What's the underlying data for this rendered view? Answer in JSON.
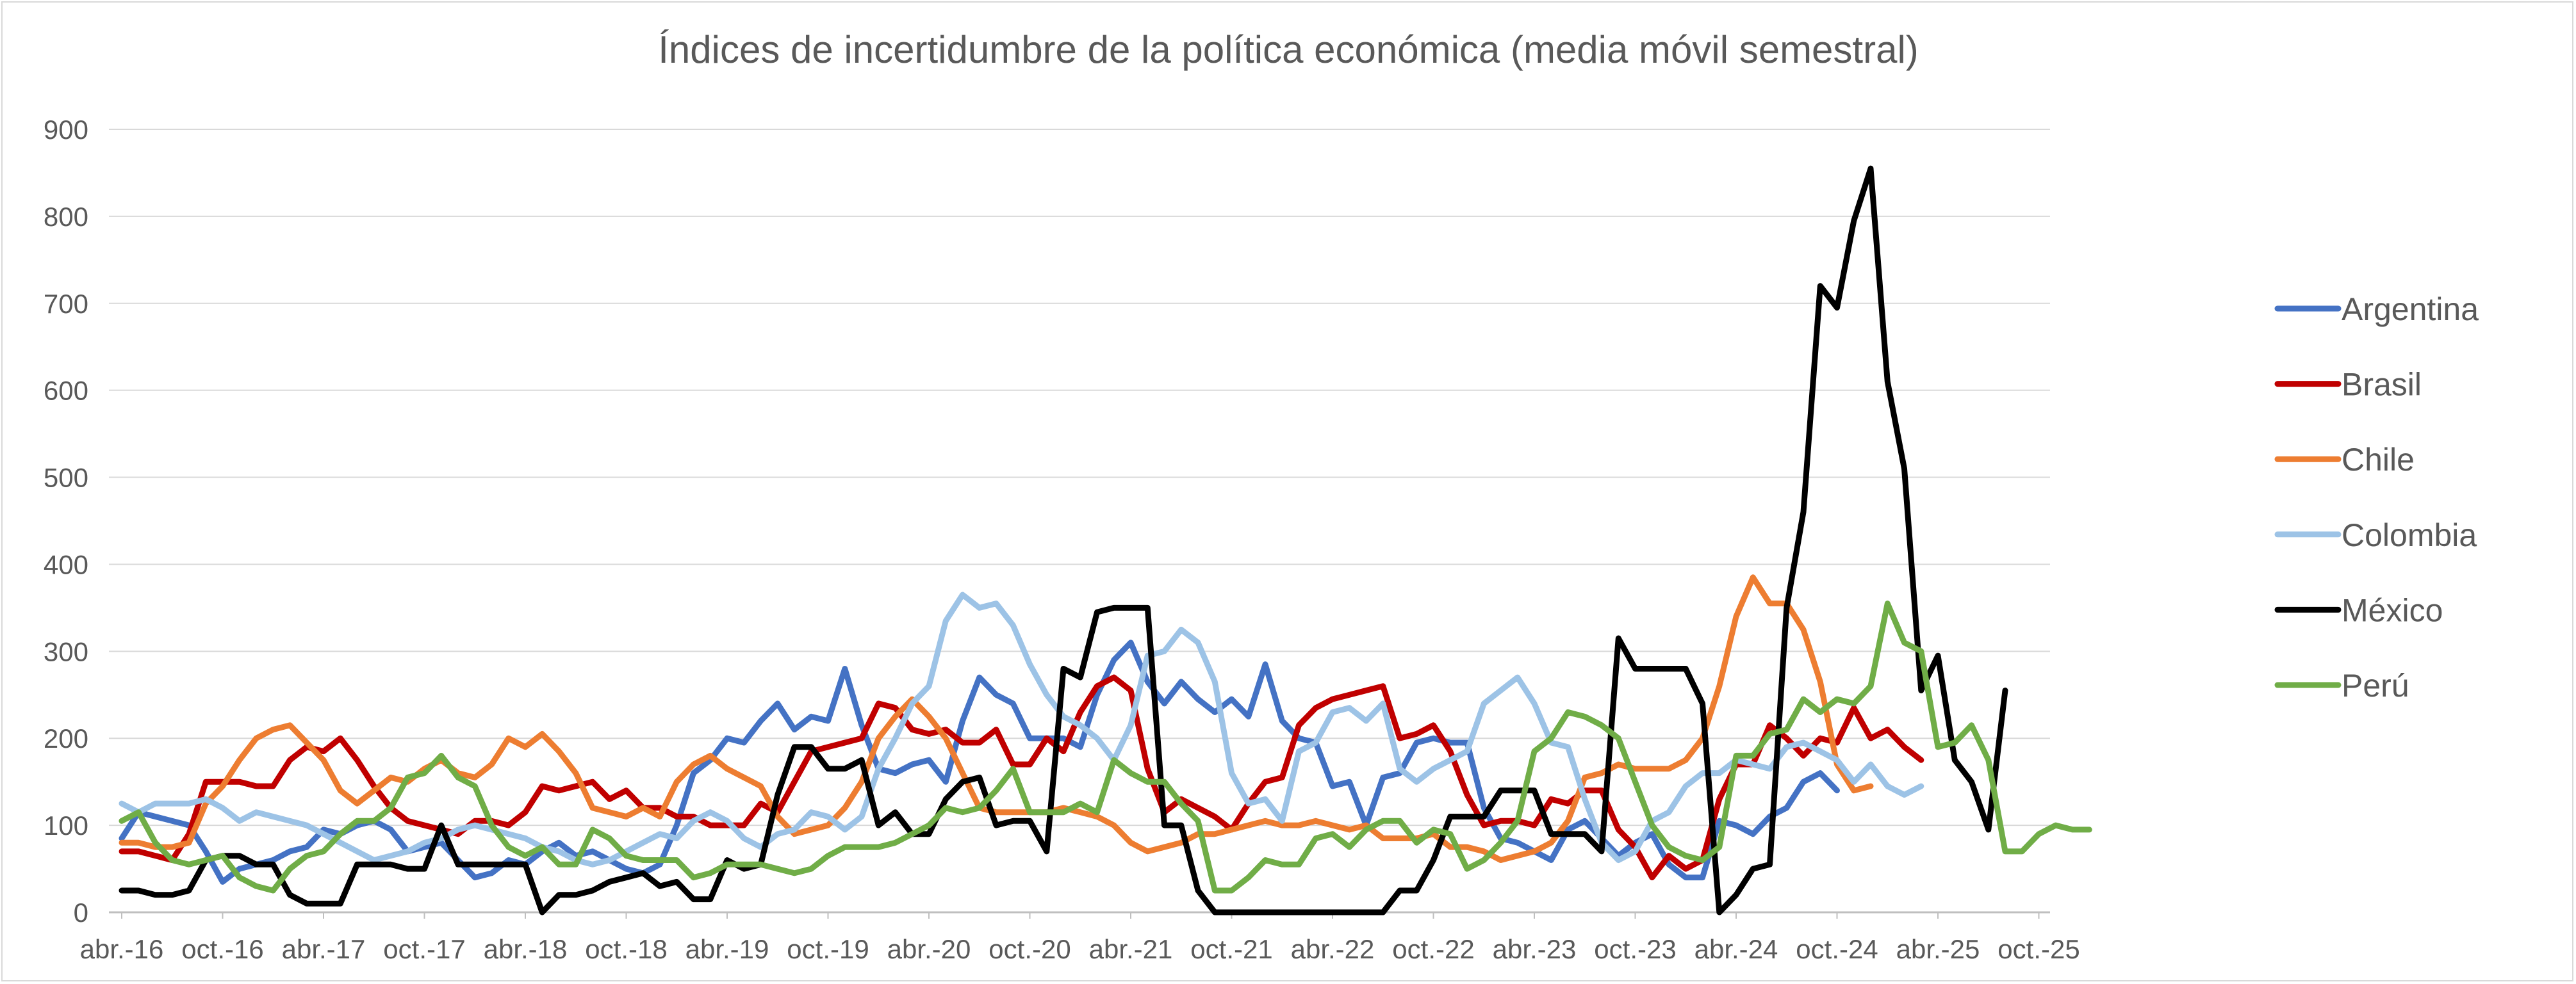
{
  "chart_data": {
    "type": "line",
    "title": "Índices de incertidumbre de la política económica (media móvil semestral)",
    "xlabel": "",
    "ylabel": "",
    "ylim": [
      0,
      900
    ],
    "yticks": [
      0,
      100,
      200,
      300,
      400,
      500,
      600,
      700,
      800,
      900
    ],
    "grid": true,
    "legend_position": "right",
    "x_tick_labels": [
      "abr.-16",
      "oct.-16",
      "abr.-17",
      "oct.-17",
      "abr.-18",
      "oct.-18",
      "abr.-19",
      "oct.-19",
      "abr.-20",
      "oct.-20",
      "abr.-21",
      "oct.-21",
      "abr.-22",
      "oct.-22",
      "abr.-23",
      "oct.-23",
      "abr.-24",
      "oct.-24",
      "abr.-25",
      "oct.-25"
    ],
    "x_start": "2016-04",
    "frequency": "monthly",
    "series": [
      {
        "name": "Argentina",
        "color": "#4472C4",
        "values": [
          85,
          115,
          110,
          105,
          100,
          70,
          35,
          50,
          55,
          60,
          70,
          75,
          95,
          90,
          100,
          105,
          95,
          70,
          75,
          80,
          60,
          40,
          45,
          60,
          55,
          70,
          80,
          65,
          70,
          60,
          50,
          45,
          55,
          100,
          160,
          175,
          200,
          195,
          220,
          240,
          210,
          225,
          220,
          280,
          215,
          165,
          160,
          170,
          175,
          150,
          220,
          270,
          250,
          240,
          200,
          200,
          200,
          190,
          250,
          290,
          310,
          265,
          240,
          265,
          245,
          230,
          245,
          225,
          285,
          220,
          200,
          195,
          145,
          150,
          100,
          155,
          160,
          195,
          200,
          195,
          195,
          120,
          85,
          80,
          70,
          60,
          95,
          105,
          85,
          65,
          80,
          90,
          55,
          40,
          40,
          105,
          100,
          90,
          110,
          120,
          150,
          160,
          140
        ]
      },
      {
        "name": "Brasil",
        "color": "#C00000",
        "values": [
          70,
          70,
          65,
          60,
          90,
          150,
          150,
          150,
          145,
          145,
          175,
          190,
          185,
          200,
          175,
          145,
          120,
          105,
          100,
          95,
          90,
          105,
          105,
          100,
          115,
          145,
          140,
          145,
          150,
          130,
          140,
          120,
          120,
          110,
          110,
          100,
          100,
          100,
          125,
          115,
          150,
          185,
          190,
          195,
          200,
          240,
          235,
          210,
          205,
          210,
          195,
          195,
          210,
          170,
          170,
          200,
          185,
          230,
          260,
          270,
          255,
          165,
          115,
          130,
          120,
          110,
          95,
          125,
          150,
          155,
          215,
          235,
          245,
          250,
          255,
          260,
          200,
          205,
          215,
          185,
          135,
          100,
          105,
          105,
          100,
          130,
          125,
          140,
          140,
          95,
          75,
          40,
          65,
          50,
          60,
          130,
          170,
          170,
          215,
          200,
          180,
          200,
          195,
          235,
          200,
          210,
          190,
          175
        ]
      },
      {
        "name": "Chile",
        "color": "#ED7D31",
        "values": [
          80,
          80,
          75,
          75,
          80,
          125,
          145,
          175,
          200,
          210,
          215,
          195,
          175,
          140,
          125,
          140,
          155,
          150,
          165,
          175,
          160,
          155,
          170,
          200,
          190,
          205,
          185,
          160,
          120,
          115,
          110,
          120,
          110,
          150,
          170,
          180,
          165,
          155,
          145,
          110,
          90,
          95,
          100,
          120,
          150,
          200,
          225,
          245,
          225,
          200,
          160,
          120,
          115,
          115,
          115,
          115,
          120,
          115,
          110,
          100,
          80,
          70,
          75,
          80,
          90,
          90,
          95,
          100,
          105,
          100,
          100,
          105,
          100,
          95,
          100,
          85,
          85,
          85,
          90,
          75,
          75,
          70,
          60,
          65,
          70,
          80,
          105,
          155,
          160,
          170,
          165,
          165,
          165,
          175,
          200,
          260,
          340,
          385,
          355,
          355,
          325,
          265,
          170,
          140,
          145
        ]
      },
      {
        "name": "Colombia",
        "color": "#9DC3E6",
        "values": [
          125,
          115,
          125,
          125,
          125,
          130,
          120,
          105,
          115,
          110,
          105,
          100,
          90,
          80,
          70,
          60,
          65,
          70,
          80,
          85,
          95,
          100,
          95,
          90,
          85,
          75,
          70,
          60,
          55,
          60,
          70,
          80,
          90,
          85,
          105,
          115,
          105,
          85,
          75,
          90,
          95,
          115,
          110,
          95,
          110,
          165,
          200,
          240,
          260,
          335,
          365,
          350,
          355,
          330,
          285,
          250,
          225,
          215,
          200,
          175,
          215,
          295,
          300,
          325,
          310,
          265,
          160,
          125,
          130,
          105,
          185,
          195,
          230,
          235,
          220,
          240,
          165,
          150,
          165,
          175,
          185,
          240,
          255,
          270,
          240,
          195,
          190,
          130,
          80,
          60,
          70,
          105,
          115,
          145,
          160,
          160,
          175,
          170,
          165,
          190,
          195,
          185,
          175,
          150,
          170,
          145,
          135,
          145
        ]
      },
      {
        "name": "México",
        "color": "#000000",
        "values": [
          25,
          25,
          20,
          20,
          25,
          60,
          65,
          65,
          55,
          55,
          20,
          10,
          10,
          10,
          55,
          55,
          55,
          50,
          50,
          100,
          55,
          55,
          55,
          55,
          55,
          0,
          20,
          20,
          25,
          35,
          40,
          45,
          30,
          35,
          15,
          15,
          60,
          50,
          55,
          135,
          190,
          190,
          165,
          165,
          175,
          100,
          115,
          90,
          90,
          130,
          150,
          155,
          100,
          105,
          105,
          70,
          280,
          270,
          345,
          350,
          350,
          350,
          100,
          100,
          25,
          0,
          0,
          0,
          0,
          0,
          0,
          0,
          0,
          0,
          0,
          0,
          25,
          25,
          60,
          110,
          110,
          110,
          140,
          140,
          140,
          90,
          90,
          90,
          70,
          315,
          280,
          280,
          280,
          280,
          240,
          0,
          20,
          50,
          55,
          350,
          460,
          720,
          695,
          795,
          855,
          610,
          510,
          255,
          295,
          175,
          150,
          95,
          255
        ]
      },
      {
        "name": "Perú",
        "color": "#70AD47",
        "values": [
          105,
          115,
          80,
          60,
          55,
          60,
          65,
          40,
          30,
          25,
          50,
          65,
          70,
          90,
          105,
          105,
          120,
          155,
          160,
          180,
          155,
          145,
          100,
          75,
          65,
          75,
          55,
          55,
          95,
          85,
          65,
          60,
          60,
          60,
          40,
          45,
          55,
          55,
          55,
          50,
          45,
          50,
          65,
          75,
          75,
          75,
          80,
          90,
          100,
          120,
          115,
          120,
          140,
          165,
          115,
          115,
          115,
          125,
          115,
          175,
          160,
          150,
          150,
          125,
          105,
          25,
          25,
          40,
          60,
          55,
          55,
          85,
          90,
          75,
          95,
          105,
          105,
          80,
          95,
          90,
          50,
          60,
          80,
          105,
          185,
          200,
          230,
          225,
          215,
          200,
          150,
          100,
          75,
          65,
          60,
          75,
          180,
          180,
          205,
          210,
          245,
          230,
          245,
          240,
          260,
          355,
          310,
          300,
          190,
          195,
          215,
          175,
          70,
          70,
          90,
          100,
          95,
          95
        ]
      }
    ]
  }
}
